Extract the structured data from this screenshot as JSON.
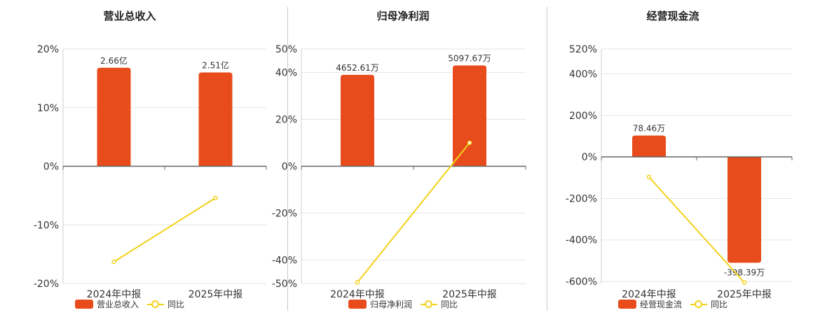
{
  "colors": {
    "bar": "#e84c1c",
    "line": "#f2d21c",
    "grid": "#e6e6e6",
    "axis": "#666666",
    "text": "#333333"
  },
  "legend": {
    "line_label": "同比"
  },
  "chart_data": [
    {
      "type": "bar",
      "title": "营业总收入",
      "categories": [
        "2024年中报",
        "2025年中报"
      ],
      "series": [
        {
          "name": "营业总收入",
          "type": "bar",
          "values": [
            16.8,
            16.0
          ],
          "labels": [
            "2.66亿",
            "2.51亿"
          ]
        },
        {
          "name": "同比",
          "type": "line",
          "values": [
            -16.3,
            -5.4
          ]
        }
      ],
      "ylim": [
        -20,
        20
      ],
      "yticks": [
        20,
        10,
        0,
        -10,
        -20
      ],
      "yticklabels": [
        "20%",
        "10%",
        "0%",
        "-10%",
        "-20%"
      ]
    },
    {
      "type": "bar",
      "title": "归母净利润",
      "categories": [
        "2024年中报",
        "2025年中报"
      ],
      "series": [
        {
          "name": "归母净利润",
          "type": "bar",
          "values": [
            39.0,
            43.0
          ],
          "labels": [
            "4652.61万",
            "5097.67万"
          ]
        },
        {
          "name": "同比",
          "type": "line",
          "values": [
            -49.5,
            10.0
          ]
        }
      ],
      "ylim": [
        -50,
        50
      ],
      "yticks": [
        50,
        40,
        20,
        0,
        -20,
        -40,
        -50
      ],
      "yticklabels": [
        "50%",
        "40%",
        "20%",
        "0%",
        "-20%",
        "-40%",
        "-50%"
      ]
    },
    {
      "type": "bar",
      "title": "经营现金流",
      "categories": [
        "2024年中报",
        "2025年中报"
      ],
      "series": [
        {
          "name": "经营现金流",
          "type": "bar",
          "values": [
            103,
            -510
          ],
          "labels": [
            "78.46万",
            "-398.39万"
          ]
        },
        {
          "name": "同比",
          "type": "line",
          "values": [
            -97,
            -605
          ]
        }
      ],
      "ylim": [
        -610,
        520
      ],
      "yticks": [
        520,
        400,
        200,
        0,
        -200,
        -400,
        -600
      ],
      "yticklabels": [
        "520%",
        "400%",
        "200%",
        "0%",
        "-200%",
        "-400%",
        "-600%"
      ]
    }
  ]
}
